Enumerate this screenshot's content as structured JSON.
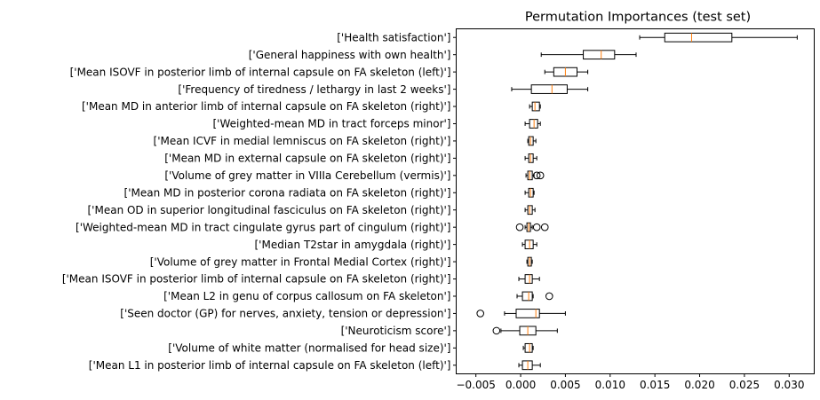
{
  "chart_data": {
    "type": "boxplot",
    "orientation": "horizontal",
    "title": "Permutation Importances (test set)",
    "xlabel": "",
    "ylabel": "",
    "xlim": [
      -0.0072,
      0.0328
    ],
    "xticks": [
      -0.005,
      0.0,
      0.005,
      0.01,
      0.015,
      0.02,
      0.025,
      0.03
    ],
    "xtick_labels": [
      "−0.005",
      "0.000",
      "0.005",
      "0.010",
      "0.015",
      "0.020",
      "0.025",
      "0.030"
    ],
    "grid": false,
    "colors": {
      "median": "#ff7f0e",
      "box": "#000000",
      "axis": "#000000"
    },
    "categories": [
      "['Health satisfaction']",
      "['General happiness with own health']",
      "['Mean ISOVF in posterior limb of internal capsule on FA skeleton (left)']",
      "['Frequency of tiredness / lethargy in last 2 weeks']",
      "['Mean MD in anterior limb of internal capsule on FA skeleton (right)']",
      "['Weighted-mean MD in tract forceps minor']",
      "['Mean ICVF in medial lemniscus on FA skeleton (right)']",
      "['Mean MD in external capsule on FA skeleton (right)']",
      "['Volume of grey matter in VIIIa Cerebellum (vermis)']",
      "['Mean MD in posterior corona radiata on FA skeleton (right)']",
      "['Mean OD in superior longitudinal fasciculus on FA skeleton (right)']",
      "['Weighted-mean MD in tract cingulate gyrus part of cingulum (right)']",
      "['Median T2star in amygdala (right)']",
      "['Volume of grey matter in Frontal Medial Cortex (right)']",
      "['Mean ISOVF in posterior limb of internal capsule on FA skeleton (right)']",
      "['Mean L2 in genu of corpus callosum on FA skeleton']",
      "['Seen doctor (GP) for nerves, anxiety, tension or depression']",
      "['Neuroticism score']",
      "['Volume of white matter (normalised for head size)']",
      "['Mean L1 in posterior limb of internal capsule on FA skeleton (left)']"
    ],
    "boxes": [
      {
        "whislo": 0.0133,
        "q1": 0.0161,
        "med": 0.0191,
        "q3": 0.0236,
        "whishi": 0.0309,
        "fliers": []
      },
      {
        "whislo": 0.0023,
        "q1": 0.007,
        "med": 0.009,
        "q3": 0.0105,
        "whishi": 0.0129,
        "fliers": []
      },
      {
        "whislo": 0.0027,
        "q1": 0.0037,
        "med": 0.005,
        "q3": 0.0063,
        "whishi": 0.0075,
        "fliers": []
      },
      {
        "whislo": -0.001,
        "q1": 0.0012,
        "med": 0.0035,
        "q3": 0.0052,
        "whishi": 0.0075,
        "fliers": []
      },
      {
        "whislo": 0.001,
        "q1": 0.0013,
        "med": 0.0016,
        "q3": 0.0021,
        "whishi": 0.0022,
        "fliers": []
      },
      {
        "whislo": 0.0005,
        "q1": 0.001,
        "med": 0.0015,
        "q3": 0.0019,
        "whishi": 0.0022,
        "fliers": []
      },
      {
        "whislo": 0.0008,
        "q1": 0.0009,
        "med": 0.0011,
        "q3": 0.0014,
        "whishi": 0.0017,
        "fliers": []
      },
      {
        "whislo": 0.0005,
        "q1": 0.0009,
        "med": 0.0011,
        "q3": 0.0014,
        "whishi": 0.0018,
        "fliers": []
      },
      {
        "whislo": 0.0006,
        "q1": 0.0008,
        "med": 0.001,
        "q3": 0.0013,
        "whishi": 0.0015,
        "fliers": [
          0.0018,
          0.0022
        ]
      },
      {
        "whislo": 0.0005,
        "q1": 0.0009,
        "med": 0.0011,
        "q3": 0.0014,
        "whishi": 0.0015,
        "fliers": []
      },
      {
        "whislo": 0.0005,
        "q1": 0.0008,
        "med": 0.001,
        "q3": 0.0013,
        "whishi": 0.0016,
        "fliers": []
      },
      {
        "whislo": 0.0005,
        "q1": 0.0007,
        "med": 0.0009,
        "q3": 0.0011,
        "whishi": 0.0013,
        "fliers": [
          -0.0001,
          0.0018,
          0.0027
        ]
      },
      {
        "whislo": 0.0002,
        "q1": 0.0005,
        "med": 0.001,
        "q3": 0.0014,
        "whishi": 0.0018,
        "fliers": []
      },
      {
        "whislo": 0.0007,
        "q1": 0.0008,
        "med": 0.001,
        "q3": 0.0012,
        "whishi": 0.0013,
        "fliers": []
      },
      {
        "whislo": -0.0002,
        "q1": 0.0005,
        "med": 0.001,
        "q3": 0.0013,
        "whishi": 0.0021,
        "fliers": []
      },
      {
        "whislo": -0.0004,
        "q1": 0.0002,
        "med": 0.0009,
        "q3": 0.0013,
        "whishi": 0.0014,
        "fliers": [
          0.0032
        ]
      },
      {
        "whislo": -0.0018,
        "q1": -0.0005,
        "med": 0.0017,
        "q3": 0.0021,
        "whishi": 0.005,
        "fliers": [
          -0.0045
        ]
      },
      {
        "whislo": -0.0022,
        "q1": -0.0001,
        "med": 0.0008,
        "q3": 0.0017,
        "whishi": 0.0041,
        "fliers": [
          -0.0027
        ]
      },
      {
        "whislo": 0.0003,
        "q1": 0.0005,
        "med": 0.001,
        "q3": 0.0013,
        "whishi": 0.0014,
        "fliers": []
      },
      {
        "whislo": -0.0002,
        "q1": 0.0002,
        "med": 0.0008,
        "q3": 0.0013,
        "whishi": 0.0022,
        "fliers": []
      }
    ]
  }
}
